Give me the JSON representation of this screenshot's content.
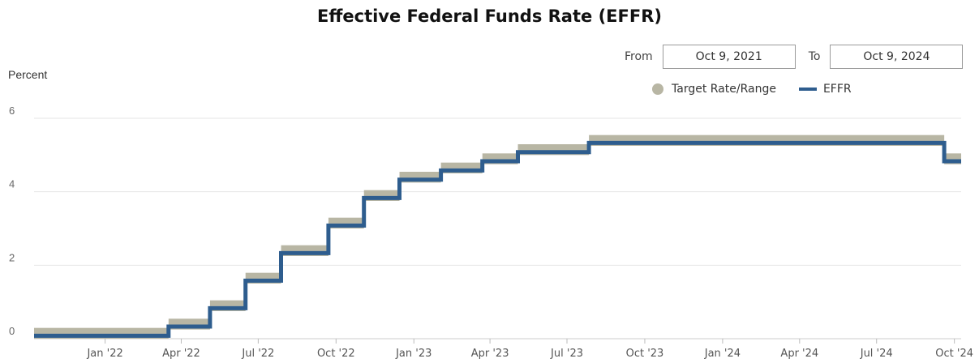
{
  "page": {
    "title": "Effective Federal Funds Rate (EFFR)",
    "from_label": "From",
    "from_value": "Oct 9, 2021",
    "to_label": "To",
    "to_value": "Oct 9, 2024"
  },
  "chart_data": {
    "type": "line",
    "title": "Effective Federal Funds Rate (EFFR)",
    "ylabel": "Percent",
    "xlabel": "",
    "ylim": [
      0,
      6
    ],
    "xlim": [
      "2021-10-09",
      "2024-10-09"
    ],
    "yticks": [
      "0",
      "2",
      "4",
      "6"
    ],
    "xticks": [
      {
        "label": "Jan '22",
        "date": "2022-01-01"
      },
      {
        "label": "Apr '22",
        "date": "2022-04-01"
      },
      {
        "label": "Jul '22",
        "date": "2022-07-01"
      },
      {
        "label": "Oct '22",
        "date": "2022-10-01"
      },
      {
        "label": "Jan '23",
        "date": "2023-01-01"
      },
      {
        "label": "Apr '23",
        "date": "2023-04-01"
      },
      {
        "label": "Jul '23",
        "date": "2023-07-01"
      },
      {
        "label": "Oct '23",
        "date": "2023-10-01"
      },
      {
        "label": "Jan '24",
        "date": "2024-01-01"
      },
      {
        "label": "Apr '24",
        "date": "2024-04-01"
      },
      {
        "label": "Jul '24",
        "date": "2024-07-01"
      },
      {
        "label": "Oct '24",
        "date": "2024-10-01"
      }
    ],
    "grid": true,
    "legend_position": "top-right",
    "series": [
      {
        "name": "Target Rate/Range",
        "color": "#b8b6a4",
        "style": "band",
        "steps": [
          {
            "date": "2021-10-09",
            "low": 0.0,
            "high": 0.25
          },
          {
            "date": "2022-03-17",
            "low": 0.25,
            "high": 0.5
          },
          {
            "date": "2022-05-05",
            "low": 0.75,
            "high": 1.0
          },
          {
            "date": "2022-06-16",
            "low": 1.5,
            "high": 1.75
          },
          {
            "date": "2022-07-28",
            "low": 2.25,
            "high": 2.5
          },
          {
            "date": "2022-09-22",
            "low": 3.0,
            "high": 3.25
          },
          {
            "date": "2022-11-03",
            "low": 3.75,
            "high": 4.0
          },
          {
            "date": "2022-12-15",
            "low": 4.25,
            "high": 4.5
          },
          {
            "date": "2023-02-02",
            "low": 4.5,
            "high": 4.75
          },
          {
            "date": "2023-03-23",
            "low": 4.75,
            "high": 5.0
          },
          {
            "date": "2023-05-04",
            "low": 5.0,
            "high": 5.25
          },
          {
            "date": "2023-07-27",
            "low": 5.25,
            "high": 5.5
          },
          {
            "date": "2024-09-19",
            "low": 4.75,
            "high": 5.0
          }
        ]
      },
      {
        "name": "EFFR",
        "color": "#2e5d8e",
        "style": "step-line",
        "steps": [
          {
            "date": "2021-10-09",
            "value": 0.08
          },
          {
            "date": "2022-03-17",
            "value": 0.33
          },
          {
            "date": "2022-05-05",
            "value": 0.83
          },
          {
            "date": "2022-06-16",
            "value": 1.58
          },
          {
            "date": "2022-07-28",
            "value": 2.33
          },
          {
            "date": "2022-09-22",
            "value": 3.08
          },
          {
            "date": "2022-11-03",
            "value": 3.83
          },
          {
            "date": "2022-12-15",
            "value": 4.33
          },
          {
            "date": "2023-02-02",
            "value": 4.58
          },
          {
            "date": "2023-03-23",
            "value": 4.83
          },
          {
            "date": "2023-05-04",
            "value": 5.08
          },
          {
            "date": "2023-07-27",
            "value": 5.33
          },
          {
            "date": "2024-09-19",
            "value": 4.83
          }
        ]
      }
    ]
  }
}
